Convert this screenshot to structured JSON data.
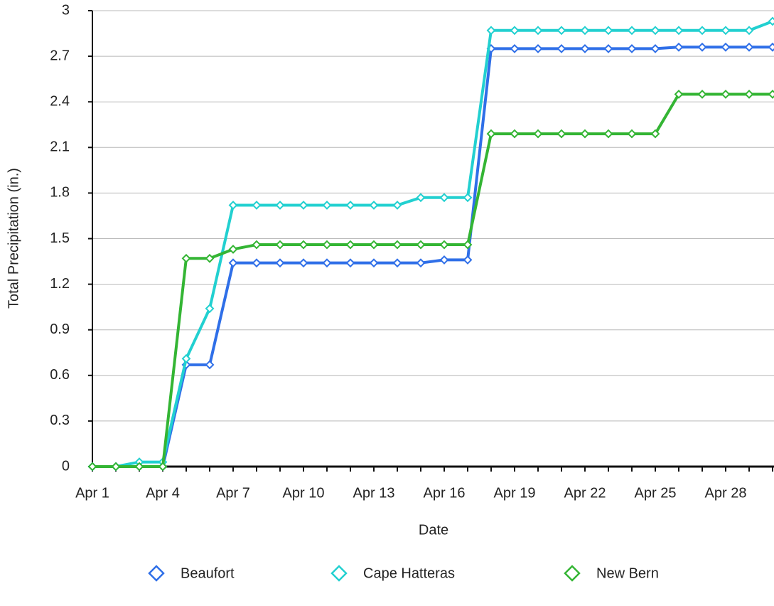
{
  "chart_data": {
    "type": "line",
    "x_label": "Date",
    "y_label": "Total Precipitation (in.)",
    "categories": [
      "Apr 1",
      null,
      null,
      "Apr 4",
      null,
      null,
      "Apr 7",
      null,
      null,
      "Apr 10",
      null,
      null,
      "Apr 13",
      null,
      null,
      "Apr 16",
      null,
      null,
      "Apr 19",
      null,
      null,
      "Apr 22",
      null,
      null,
      "Apr 25",
      null,
      null,
      "Apr 28",
      null,
      null
    ],
    "series": [
      {
        "name": "Beaufort",
        "color": "#2f6fe8",
        "values": [
          0,
          0,
          0,
          0,
          0.67,
          0.67,
          1.34,
          1.34,
          1.34,
          1.34,
          1.34,
          1.34,
          1.34,
          1.34,
          1.34,
          1.36,
          1.36,
          2.75,
          2.75,
          2.75,
          2.75,
          2.75,
          2.75,
          2.75,
          2.75,
          2.76,
          2.76,
          2.76,
          2.76,
          2.76
        ]
      },
      {
        "name": "Cape Hatteras",
        "color": "#22d0d0",
        "values": [
          0,
          0,
          0.03,
          0.03,
          0.71,
          1.04,
          1.72,
          1.72,
          1.72,
          1.72,
          1.72,
          1.72,
          1.72,
          1.72,
          1.77,
          1.77,
          1.77,
          2.87,
          2.87,
          2.87,
          2.87,
          2.87,
          2.87,
          2.87,
          2.87,
          2.87,
          2.87,
          2.87,
          2.87,
          2.93
        ]
      },
      {
        "name": "New Bern",
        "color": "#34b534",
        "values": [
          0,
          0,
          0,
          0,
          1.37,
          1.37,
          1.43,
          1.46,
          1.46,
          1.46,
          1.46,
          1.46,
          1.46,
          1.46,
          1.46,
          1.46,
          1.46,
          2.19,
          2.19,
          2.19,
          2.19,
          2.19,
          2.19,
          2.19,
          2.19,
          2.45,
          2.45,
          2.45,
          2.45,
          2.45
        ]
      }
    ],
    "ylim": [
      0,
      3
    ],
    "yticks": [
      0,
      0.3,
      0.6,
      0.9,
      1.2,
      1.5,
      1.8,
      2.1,
      2.4,
      2.7,
      3
    ],
    "grid": true
  }
}
